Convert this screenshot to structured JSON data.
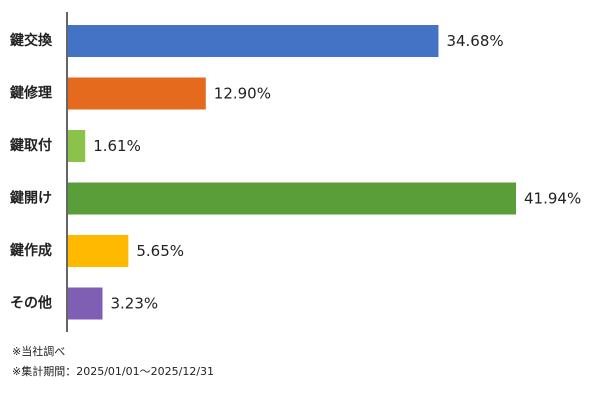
{
  "chart_data": {
    "type": "bar",
    "orientation": "horizontal",
    "categories": [
      "鍵交換",
      "鍵修理",
      "鍵取付",
      "鍵開け",
      "鍵作成",
      "その他"
    ],
    "values": [
      34.68,
      12.9,
      1.61,
      41.94,
      5.65,
      3.23
    ],
    "value_labels": [
      "34.68%",
      "12.90%",
      "1.61%",
      "41.94%",
      "5.65%",
      "3.23%"
    ],
    "colors": [
      "#4472C4",
      "#E56A1E",
      "#8BC34A",
      "#5A9E3A",
      "#FFB900",
      "#7E5FB3"
    ],
    "xlim": [
      0,
      41.94
    ],
    "grid": false,
    "legend": "none"
  },
  "footnotes": {
    "source": "※当社調べ",
    "period": "※集計期間：2025/01/01～2025/12/31"
  }
}
